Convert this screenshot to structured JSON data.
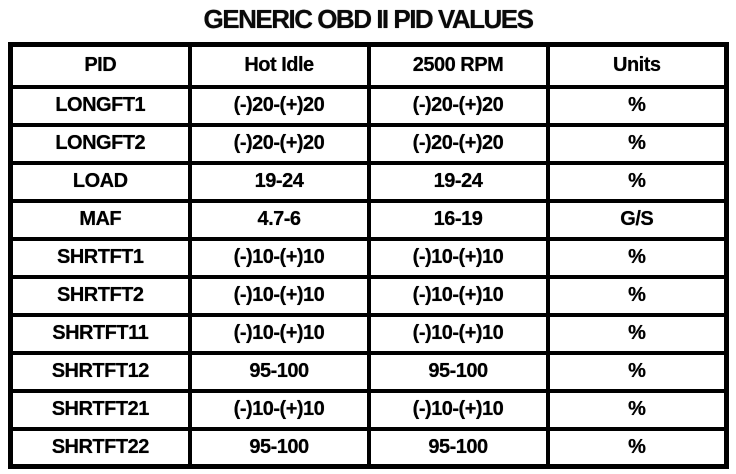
{
  "page": {
    "title": "GENERIC OBD II PID VALUES"
  },
  "colors": {
    "ink": "#000000",
    "paper": "#ffffff"
  },
  "table": {
    "headers": [
      "PID",
      "Hot Idle",
      "2500 RPM",
      "Units"
    ],
    "rows": [
      {
        "pid": "LONGFT1",
        "hot_idle": "(-)20-(+)20",
        "rpm_2500": "(-)20-(+)20",
        "units": "%"
      },
      {
        "pid": "LONGFT2",
        "hot_idle": "(-)20-(+)20",
        "rpm_2500": "(-)20-(+)20",
        "units": "%"
      },
      {
        "pid": "LOAD",
        "hot_idle": "19-24",
        "rpm_2500": "19-24",
        "units": "%"
      },
      {
        "pid": "MAF",
        "hot_idle": "4.7-6",
        "rpm_2500": "16-19",
        "units": "G/S"
      },
      {
        "pid": "SHRTFT1",
        "hot_idle": "(-)10-(+)10",
        "rpm_2500": "(-)10-(+)10",
        "units": "%"
      },
      {
        "pid": "SHRTFT2",
        "hot_idle": "(-)10-(+)10",
        "rpm_2500": "(-)10-(+)10",
        "units": "%"
      },
      {
        "pid": "SHRTFT11",
        "hot_idle": "(-)10-(+)10",
        "rpm_2500": "(-)10-(+)10",
        "units": "%"
      },
      {
        "pid": "SHRTFT12",
        "hot_idle": "95-100",
        "rpm_2500": "95-100",
        "units": "%"
      },
      {
        "pid": "SHRTFT21",
        "hot_idle": "(-)10-(+)10",
        "rpm_2500": "(-)10-(+)10",
        "units": "%"
      },
      {
        "pid": "SHRTFT22",
        "hot_idle": "95-100",
        "rpm_2500": "95-100",
        "units": "%"
      }
    ]
  }
}
